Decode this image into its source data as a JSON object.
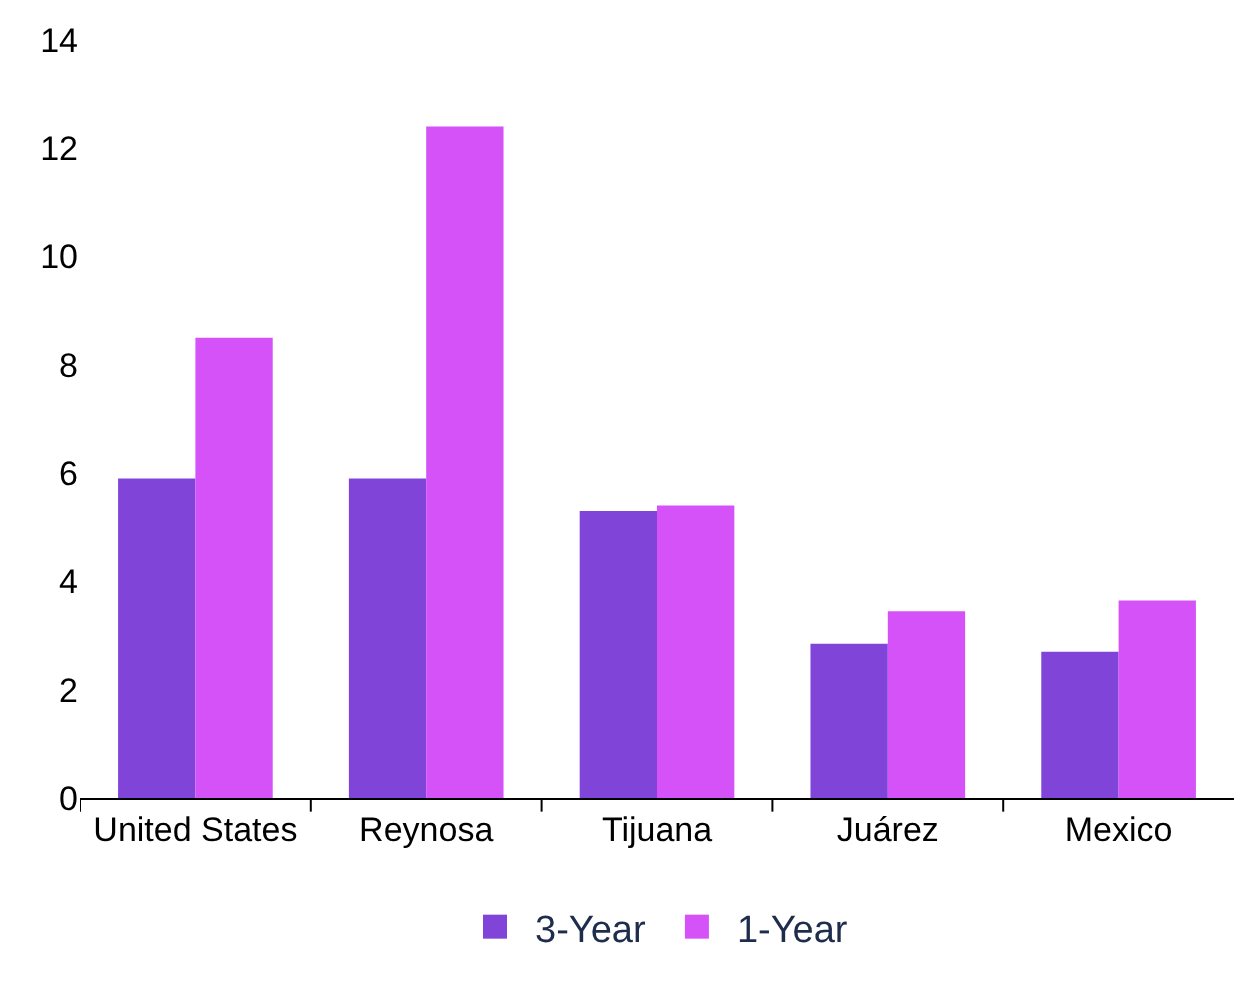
{
  "chart_data": {
    "type": "bar",
    "categories": [
      "United States",
      "Reynosa",
      "Tijuana",
      "Juárez",
      "Mexico"
    ],
    "series": [
      {
        "name": "3-Year",
        "color": "#8044d8",
        "values": [
          5.9,
          5.9,
          5.3,
          2.85,
          2.7
        ]
      },
      {
        "name": "1-Year",
        "color": "#d452f8",
        "values": [
          8.5,
          12.4,
          5.4,
          3.45,
          3.65
        ]
      }
    ],
    "ylim": [
      0,
      14
    ],
    "yticks": [
      0,
      2,
      4,
      6,
      8,
      10,
      12,
      14
    ],
    "grid": false,
    "legend": "bottom"
  }
}
